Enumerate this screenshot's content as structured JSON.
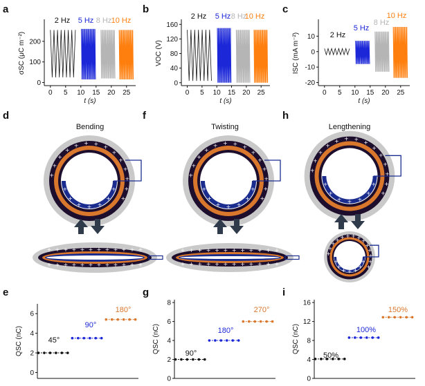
{
  "colors": {
    "c2": "#111111",
    "c5": "#1c28d8",
    "c8": "#b5b5b5",
    "c10": "#ff7f0e",
    "dark": "#1c0e2c",
    "orange": "#d9772d",
    "gray": "#c9c9c9",
    "navy": "#1a2d8f"
  },
  "panels": {
    "a": "a",
    "b": "b",
    "c": "c",
    "d": "d",
    "e": "e",
    "f": "f",
    "g": "g",
    "h": "h",
    "i": "i"
  },
  "modes": {
    "d": "Bending",
    "f": "Twisting",
    "h": "Lengthening"
  },
  "chart_data": [
    {
      "id": "a",
      "type": "line",
      "title": "",
      "xlabel": "t (s)",
      "ylabel": "σSC (μC m⁻²)",
      "xlim": [
        -2,
        28
      ],
      "ylim": [
        -15,
        300
      ],
      "xticks": [
        0,
        5,
        10,
        15,
        20,
        25
      ],
      "yticks": [
        0,
        100,
        200
      ],
      "series": [
        {
          "name": "2 Hz",
          "color": "#111111",
          "x_range": [
            0,
            8.2
          ],
          "min": 25,
          "max": 255,
          "freq": 2
        },
        {
          "name": "5 Hz",
          "color": "#1c28d8",
          "x_range": [
            10.2,
            14.8
          ],
          "min": 15,
          "max": 260,
          "freq": 5
        },
        {
          "name": "8 Hz",
          "color": "#b5b5b5",
          "x_range": [
            16.6,
            21.2
          ],
          "min": 20,
          "max": 255,
          "freq": 8
        },
        {
          "name": "10 Hz",
          "color": "#ff7f0e",
          "x_range": [
            22.6,
            27.2
          ],
          "min": 15,
          "max": 255,
          "freq": 10
        }
      ]
    },
    {
      "id": "b",
      "type": "line",
      "title": "",
      "xlabel": "t (s)",
      "ylabel": "VOC (V)",
      "xlim": [
        -2,
        28
      ],
      "ylim": [
        -8,
        170
      ],
      "xticks": [
        0,
        5,
        10,
        15,
        20,
        25
      ],
      "yticks": [
        0,
        40,
        80,
        120,
        160
      ],
      "series": [
        {
          "name": "2 Hz",
          "color": "#111111",
          "x_range": [
            0,
            8.2
          ],
          "min": 5,
          "max": 145,
          "freq": 2
        },
        {
          "name": "5 Hz",
          "color": "#1c28d8",
          "x_range": [
            10.2,
            14.8
          ],
          "min": 0,
          "max": 150,
          "freq": 5
        },
        {
          "name": "8 Hz",
          "color": "#b5b5b5",
          "x_range": [
            16.6,
            21.2
          ],
          "min": 0,
          "max": 145,
          "freq": 8
        },
        {
          "name": "10 Hz",
          "color": "#ff7f0e",
          "x_range": [
            22.6,
            27.2
          ],
          "min": 0,
          "max": 145,
          "freq": 10
        }
      ]
    },
    {
      "id": "c",
      "type": "line",
      "title": "",
      "xlabel": "t (s)",
      "ylabel": "ISC (mA m⁻²)",
      "xlim": [
        -2,
        28
      ],
      "ylim": [
        -22,
        20
      ],
      "xticks": [
        0,
        5,
        10,
        15,
        20,
        25
      ],
      "yticks": [
        -20,
        -10,
        0,
        10
      ],
      "series": [
        {
          "name": "2 Hz",
          "color": "#111111",
          "x_range": [
            0,
            8.2
          ],
          "min": -2,
          "max": 2,
          "freq": 2
        },
        {
          "name": "5 Hz",
          "color": "#1c28d8",
          "x_range": [
            10.2,
            14.8
          ],
          "min": -8,
          "max": 7,
          "freq": 5
        },
        {
          "name": "8 Hz",
          "color": "#b5b5b5",
          "x_range": [
            16.6,
            21.2
          ],
          "min": -13,
          "max": 13,
          "freq": 8
        },
        {
          "name": "10 Hz",
          "color": "#ff7f0e",
          "x_range": [
            22.6,
            27.2
          ],
          "min": -17,
          "max": 16,
          "freq": 10
        }
      ]
    },
    {
      "id": "e",
      "type": "scatter",
      "ylabel": "QSC (nC)",
      "ylim": [
        -0.6,
        7
      ],
      "yticks": [
        0,
        2,
        4,
        6
      ],
      "series": [
        {
          "name": "45°",
          "color": "#111111",
          "values": [
            2,
            2,
            2,
            2,
            2,
            2
          ]
        },
        {
          "name": "90°",
          "color": "#1c28d8",
          "values": [
            3.5,
            3.5,
            3.5,
            3.5,
            3.5,
            3.5
          ]
        },
        {
          "name": "180°",
          "color": "#d9772d",
          "values": [
            5.4,
            5.4,
            5.4,
            5.4,
            5.4,
            5.4
          ]
        }
      ]
    },
    {
      "id": "g",
      "type": "scatter",
      "ylabel": "QSC (nC)",
      "ylim": [
        0,
        8.3
      ],
      "yticks": [
        0,
        2,
        4,
        6,
        8
      ],
      "series": [
        {
          "name": "90°",
          "color": "#111111",
          "values": [
            2,
            2,
            2,
            2,
            2,
            2
          ]
        },
        {
          "name": "180°",
          "color": "#1c28d8",
          "values": [
            4,
            4,
            4,
            4,
            4,
            4
          ]
        },
        {
          "name": "270°",
          "color": "#d9772d",
          "values": [
            6,
            6,
            6,
            6,
            6,
            6
          ]
        }
      ]
    },
    {
      "id": "i",
      "type": "scatter",
      "ylabel": "QSC (nC)",
      "ylim": [
        0,
        16.6
      ],
      "yticks": [
        0,
        4,
        8,
        12,
        16
      ],
      "series": [
        {
          "name": "50%",
          "color": "#111111",
          "values": [
            4.1,
            4.1,
            4.1,
            4.1,
            4.1,
            4.1
          ]
        },
        {
          "name": "100%",
          "color": "#1c28d8",
          "values": [
            8.6,
            8.6,
            8.6,
            8.6,
            8.6,
            8.6
          ]
        },
        {
          "name": "150%",
          "color": "#d9772d",
          "values": [
            12.9,
            12.9,
            12.9,
            12.9,
            12.9,
            12.9
          ]
        }
      ]
    }
  ]
}
